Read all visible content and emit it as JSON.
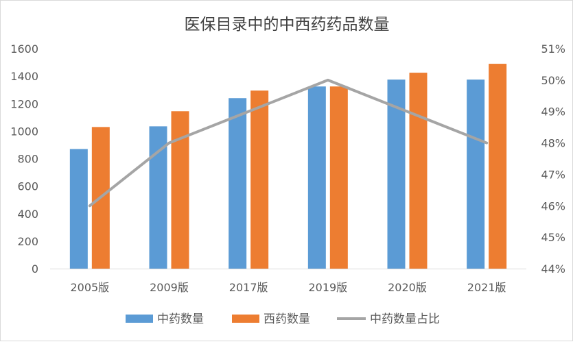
{
  "chart_data": {
    "type": "bar",
    "title": "医保目录中的中西药药品数量",
    "categories": [
      "2005版",
      "2009版",
      "2017版",
      "2019版",
      "2020版",
      "2021版"
    ],
    "series": [
      {
        "name": "中药数量",
        "kind": "bar",
        "axis": "left",
        "color": "#5b9bd5",
        "values": [
          870,
          1035,
          1240,
          1325,
          1375,
          1375
        ]
      },
      {
        "name": "西药数量",
        "kind": "bar",
        "axis": "left",
        "color": "#ed7d31",
        "values": [
          1030,
          1145,
          1295,
          1325,
          1425,
          1490
        ]
      },
      {
        "name": "中药数量占比",
        "kind": "line",
        "axis": "right",
        "color": "#a5a5a5",
        "values": [
          46.0,
          48.0,
          49.0,
          50.0,
          49.0,
          48.0
        ]
      }
    ],
    "y_left": {
      "min": 0,
      "max": 1600,
      "ticks": [
        "0",
        "200",
        "400",
        "600",
        "800",
        "1000",
        "1200",
        "1400",
        "1600"
      ]
    },
    "y_right": {
      "min": 44,
      "max": 51,
      "ticks": [
        "44%",
        "45%",
        "46%",
        "47%",
        "48%",
        "49%",
        "50%",
        "51%"
      ]
    },
    "grid": false,
    "legend_position": "bottom"
  }
}
